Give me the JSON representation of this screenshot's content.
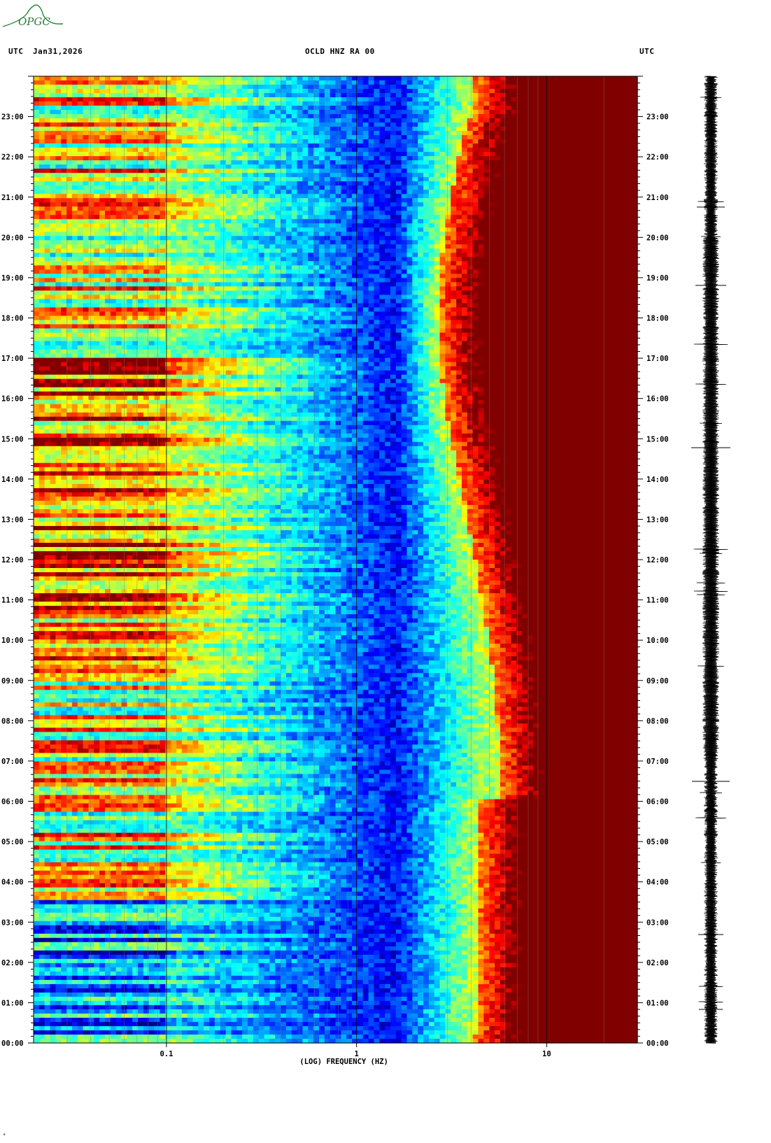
{
  "header": {
    "left_tz": "UTC",
    "date": "Jan31,2026",
    "station": "OCLD HNZ RA 00",
    "right_tz": "UTC"
  },
  "logo": {
    "text": "OPGC"
  },
  "footer": {
    "mark": "*"
  },
  "chart_data": {
    "type": "heatmap",
    "title": "OCLD HNZ RA 00",
    "xlabel": "(LOG) FREQUENCY (HZ)",
    "x_scale": "log",
    "xlim": [
      0.02,
      30
    ],
    "x_ticks": [
      {
        "value": 0.1,
        "label": "0.1"
      },
      {
        "value": 1,
        "label": "1"
      },
      {
        "value": 10,
        "label": "10"
      }
    ],
    "y_labels": [
      "00:00",
      "01:00",
      "02:00",
      "03:00",
      "04:00",
      "05:00",
      "06:00",
      "07:00",
      "08:00",
      "09:00",
      "10:00",
      "11:00",
      "12:00",
      "13:00",
      "14:00",
      "15:00",
      "16:00",
      "17:00",
      "18:00",
      "19:00",
      "20:00",
      "21:00",
      "22:00",
      "23:00"
    ],
    "ylim_hours": [
      0,
      24
    ],
    "colormap": [
      "#00007f",
      "#0000ff",
      "#00bfff",
      "#40e0d0",
      "#ffff00",
      "#ff8000",
      "#ff0000",
      "#800000"
    ],
    "background_colors": {
      "high_power": "#800000",
      "low_power": "#0000c8"
    }
  }
}
